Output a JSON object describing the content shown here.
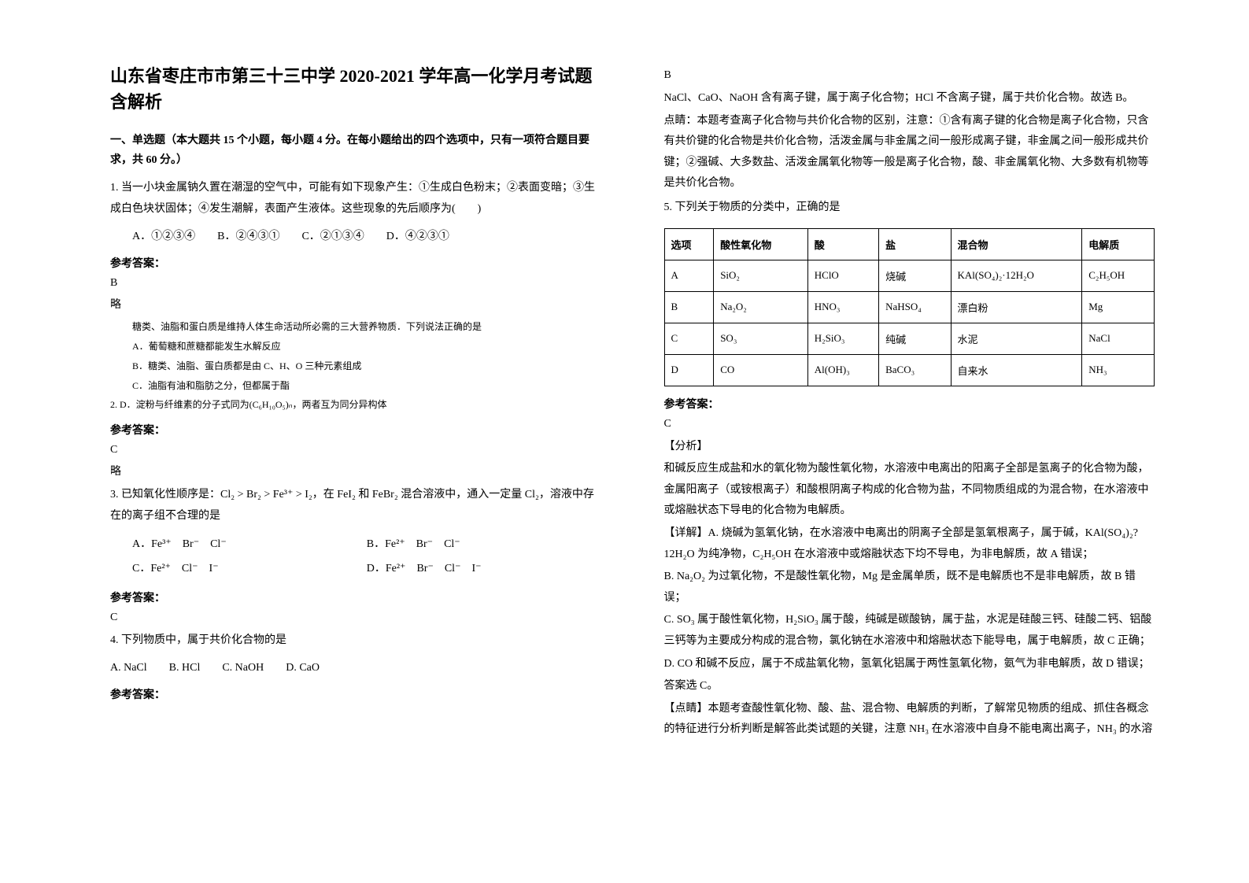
{
  "title": "山东省枣庄市市第三十三中学 2020-2021 学年高一化学月考试题含解析",
  "section1": "一、单选题（本大题共 15 个小题，每小题 4 分。在每小题给出的四个选项中，只有一项符合题目要求，共 60 分。）",
  "q1": {
    "stem": "1. 当一小块金属钠久置在潮湿的空气中，可能有如下现象产生：①生成白色粉末；②表面变暗；③生成白色块状固体；④发生潮解，表面产生液体。这些现象的先后顺序为(　　)",
    "options": "A．①②③④　　B．②④③①　　C．②①③④　　D．④②③①",
    "answer_label": "参考答案：",
    "answer": "B",
    "note": "略"
  },
  "q2": {
    "lead": "糖类、油脂和蛋白质是维持人体生命活动所必需的三大营养物质．下列说法正确的是",
    "optA": "A．葡萄糖和蔗糖都能发生水解反应",
    "optB": "B．糖类、油脂、蛋白质都是由 C、H、O 三种元素组成",
    "optC": "C．油脂有油和脂肪之分，但都属于酯",
    "optD_prefix": "2. ",
    "optD": "D．淀粉与纤维素的分子式同为(C₆H₁₀O₅)ₙ，两者互为同分异构体",
    "answer_label": "参考答案：",
    "answer": "C",
    "note": "略"
  },
  "q3": {
    "stem": "3. 已知氧化性顺序是：Cl₂ > Br₂ > Fe³⁺ > I₂，在 FeI₂ 和 FeBr₂ 混合溶液中，通入一定量 Cl₂，溶液中存在的离子组不合理的是",
    "optA": "A．Fe³⁺　Br⁻　Cl⁻",
    "optB": "B．Fe²⁺　Br⁻　Cl⁻",
    "optC": "C．Fe²⁺　Cl⁻　I⁻",
    "optD": "D．Fe²⁺　Br⁻　Cl⁻　I⁻",
    "answer_label": "参考答案：",
    "answer": "C"
  },
  "q4": {
    "stem": "4. 下列物质中，属于共价化合物的是",
    "options": "A. NaCl　　B. HCl　　C. NaOH　　D. CaO",
    "answer_label": "参考答案：",
    "answer": "B",
    "explain_p1": "NaCl、CaO、NaOH 含有离子键，属于离子化合物；HCl 不含离子键，属于共价化合物。故选 B。",
    "explain_p2": "点睛：本题考查离子化合物与共价化合物的区别，注意：①含有离子键的化合物是离子化合物，只含有共价键的化合物是共价化合物，活泼金属与非金属之间一般形成离子键，非金属之间一般形成共价键；②强碱、大多数盐、活泼金属氧化物等一般是离子化合物，酸、非金属氧化物、大多数有机物等是共价化合物。"
  },
  "q5": {
    "stem": "5. 下列关于物质的分类中，正确的是",
    "headers": [
      "选项",
      "酸性氧化物",
      "酸",
      "盐",
      "混合物",
      "电解质"
    ],
    "rows": [
      [
        "A",
        "SiO₂",
        "HClO",
        "烧碱",
        "KAl(SO₄)₂·12H₂O",
        "C₂H₅OH"
      ],
      [
        "B",
        "Na₂O₂",
        "HNO₃",
        "NaHSO₄",
        "漂白粉",
        "Mg"
      ],
      [
        "C",
        "SO₃",
        "H₂SiO₃",
        "纯碱",
        "水泥",
        "NaCl"
      ],
      [
        "D",
        "CO",
        "Al(OH)₃",
        "BaCO₃",
        "自来水",
        "NH₃"
      ]
    ],
    "answer_label": "参考答案：",
    "answer": "C",
    "analysis_label": "【分析】",
    "analysis": "和碱反应生成盐和水的氧化物为酸性氧化物，水溶液中电离出的阳离子全部是氢离子的化合物为酸，金属阳离子（或铵根离子）和酸根阴离子构成的化合物为盐，不同物质组成的为混合物，在水溶液中或熔融状态下导电的化合物为电解质。",
    "detail_label": "【详解】",
    "detail_A": "A. 烧碱为氢氧化钠，在水溶液中电离出的阴离子全部是氢氧根离子，属于碱，KAl(SO₄)₂?12H₂O 为纯净物，C₂H₅OH 在水溶液中或熔融状态下均不导电，为非电解质，故 A 错误；",
    "detail_B": "B. Na₂O₂ 为过氧化物，不是酸性氧化物，Mg 是金属单质，既不是电解质也不是非电解质，故 B 错误；",
    "detail_C": "C. SO₃ 属于酸性氧化物，H₂SiO₃ 属于酸，纯碱是碳酸钠，属于盐，水泥是硅酸三钙、硅酸二钙、铝酸三钙等为主要成分构成的混合物，氯化钠在水溶液中和熔融状态下能导电，属于电解质，故 C 正确；",
    "detail_D": "D. CO 和碱不反应，属于不成盐氧化物，氢氧化铝属于两性氢氧化物，氨气为非电解质，故 D 错误；",
    "conclusion": "答案选 C。",
    "dianjing_label": "【点睛】",
    "dianjing": "本题考查酸性氧化物、酸、盐、混合物、电解质的判断，了解常见物质的组成、抓住各概念的特征进行分析判断是解答此类试题的关键，注意 NH₃ 在水溶液中自身不能电离出离子，NH₃ 的水溶"
  }
}
